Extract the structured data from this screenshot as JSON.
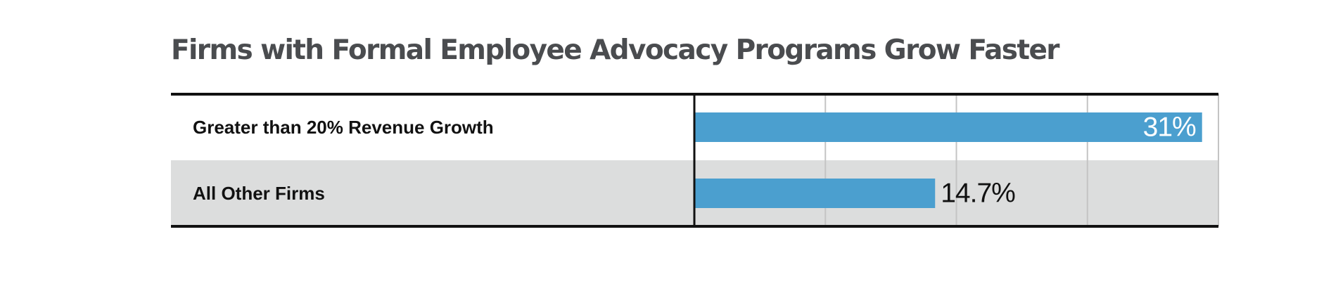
{
  "chart_data": {
    "type": "bar",
    "orientation": "horizontal",
    "title": "Firms with Formal Employee Advocacy Programs Grow Faster",
    "categories": [
      "Greater than 20% Revenue Growth",
      "All Other Firms"
    ],
    "values": [
      31,
      14.7
    ],
    "value_labels": [
      "31%",
      "14.7%"
    ],
    "unit": "%",
    "xlim": [
      0,
      32
    ],
    "xticks": [
      0,
      8,
      16,
      24,
      32
    ],
    "show_tick_labels": false,
    "grid": true,
    "legend": "none",
    "colors": {
      "bar": "#4b9fcf",
      "row_alt_background": "#dcdddd",
      "gridline": "#c4c4c4",
      "rule": "#111111",
      "label_inside": "#ffffff",
      "label_outside": "#111111"
    }
  }
}
